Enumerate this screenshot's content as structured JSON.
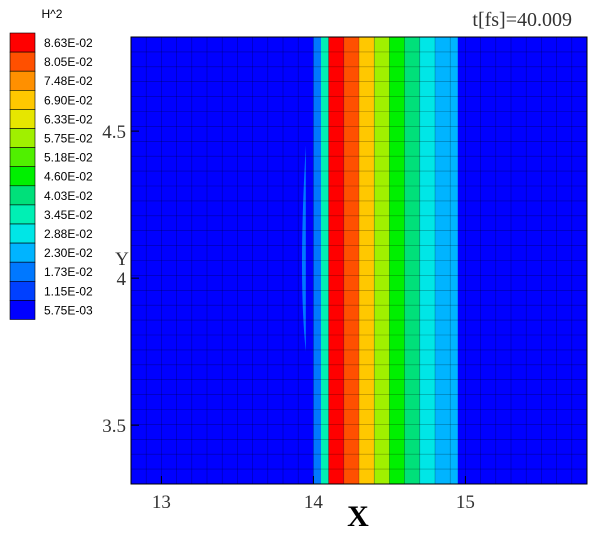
{
  "chart_data": {
    "type": "heatmap",
    "title": "t[fs]=40.009",
    "xlabel": "X",
    "ylabel": "Y",
    "xlim": [
      12.8,
      15.8
    ],
    "ylim": [
      3.3,
      4.82
    ],
    "x_ticks": [
      13,
      14,
      15
    ],
    "x_tick_labels": [
      "13",
      "14",
      "15"
    ],
    "y_ticks": [
      3.5,
      4,
      4.5
    ],
    "y_tick_labels": [
      "3.5",
      "4",
      "4.5"
    ],
    "colorbar": {
      "title": "H^2",
      "levels": [
        0.0863,
        0.0805,
        0.0748,
        0.069,
        0.0633,
        0.0575,
        0.0518,
        0.046,
        0.0403,
        0.0345,
        0.0288,
        0.023,
        0.0173,
        0.0115,
        0.00575
      ],
      "labels": [
        "8.63E-02",
        "8.05E-02",
        "7.48E-02",
        "6.90E-02",
        "6.33E-02",
        "5.75E-02",
        "5.18E-02",
        "4.60E-02",
        "4.03E-02",
        "3.45E-02",
        "2.88E-02",
        "2.30E-02",
        "1.73E-02",
        "1.15E-02",
        "5.75E-03"
      ],
      "colors": [
        "#ff0000",
        "#ff5000",
        "#ff9000",
        "#ffc800",
        "#e6e600",
        "#a0f000",
        "#50f000",
        "#00f000",
        "#00e07a",
        "#00f0b4",
        "#00e6e6",
        "#00b4ff",
        "#0078ff",
        "#0040ff",
        "#0000ff"
      ]
    },
    "band_profile": {
      "description_values_x": [
        13.95,
        14.0,
        14.05,
        14.1,
        14.2,
        14.3,
        14.4,
        14.5,
        14.6,
        14.7,
        14.8,
        14.95
      ],
      "level_index": [
        14,
        12,
        9,
        0,
        1,
        3,
        5,
        7,
        8,
        10,
        11,
        14
      ]
    },
    "grid": true
  }
}
